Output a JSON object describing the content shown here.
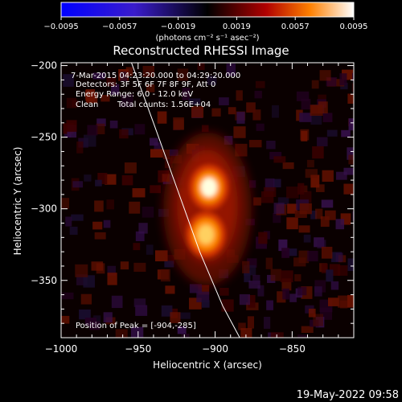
{
  "colorbar": {
    "ticks": [
      "-0.0095",
      "-0.0057",
      "-0.0019",
      "0.0019",
      "0.0057",
      "0.0095"
    ],
    "unit_label": "(photons cm⁻² s⁻¹ asec⁻²)",
    "range": [
      -0.0095,
      0.0095
    ]
  },
  "title": "Reconstructed RHESSI Image",
  "info": {
    "time_range": "7-Mar-2015 04:23:20.000 to 04:29:20.000",
    "detectors": "Detectors: 3F 5F 6F 7F 8F 9F, Att 0",
    "energy_range": "Energy Range: 6.0 - 12.0 keV",
    "method": "Clean",
    "total_counts": "Total counts: 1.56E+04",
    "peak": "Position of Peak = [-904,-285]"
  },
  "footer_timestamp": "19-May-2022 09:58",
  "chart_data": {
    "type": "heatmap",
    "title": "Reconstructed RHESSI Image",
    "xlabel": "Heliocentric X (arcsec)",
    "ylabel": "Heliocentric Y (arcsec)",
    "xlim": [
      -1000,
      -810
    ],
    "ylim": [
      -390,
      -198
    ],
    "xticks": [
      -1000,
      -950,
      -900,
      -850
    ],
    "yticks": [
      -200,
      -250,
      -300,
      -350
    ],
    "xtick_labels": [
      "-1000",
      "-950",
      "-900",
      "-850"
    ],
    "ytick_labels": [
      "-200",
      "-250",
      "-300",
      "-350"
    ],
    "colormap": "hot-bipolar",
    "colors": {
      "background": "#000000",
      "limb": "#ffffff"
    },
    "sources": [
      {
        "x": -904,
        "y": -285,
        "peak": 0.0095
      },
      {
        "x": -906,
        "y": -318,
        "peak": 0.0085
      }
    ],
    "peak_position": [
      -904,
      -285
    ],
    "limb_line": [
      [
        -955,
        -196
      ],
      [
        -940,
        -240
      ],
      [
        -925,
        -285
      ],
      [
        -910,
        -330
      ],
      [
        -895,
        -368
      ],
      [
        -884,
        -390
      ]
    ]
  }
}
